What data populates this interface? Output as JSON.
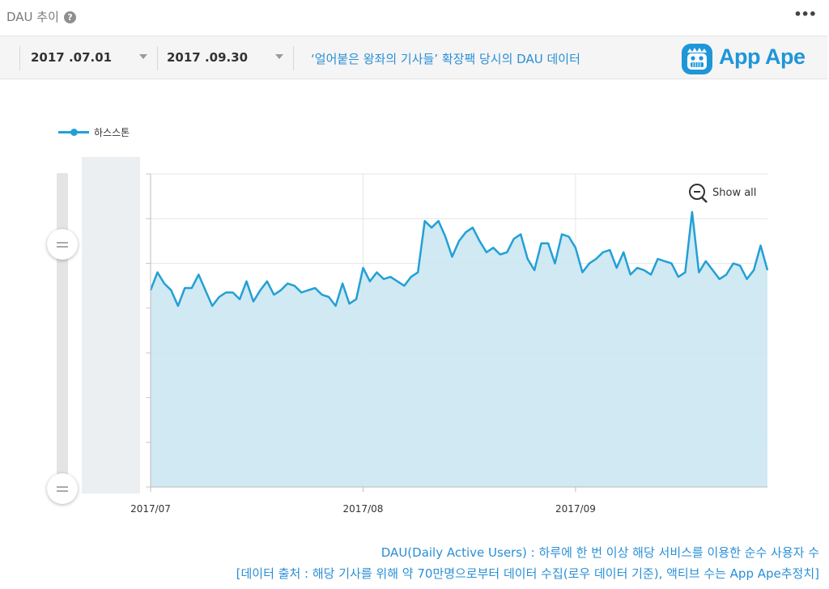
{
  "header": {
    "title": "DAU 추이",
    "help_icon": "question-circle-icon",
    "more_icon": "more-dots-icon",
    "more_label": "•••"
  },
  "filters": {
    "start_date": "2017 .07.01",
    "end_date": "2017 .09.30",
    "headline": "‘얼어붙은 왕좌의 기사들’ 확장팩 당시의 DAU 데이터"
  },
  "brand": {
    "name": "App Ape",
    "color": "#1e96d8"
  },
  "controls": {
    "show_all_label": "Show all"
  },
  "chart_data": {
    "type": "area",
    "series": [
      {
        "name": "하스스톤",
        "color": "#22a0d6",
        "fill": "#cbe7f2",
        "values": [
          4.4,
          4.8,
          4.55,
          4.4,
          4.05,
          4.45,
          4.45,
          4.75,
          4.4,
          4.05,
          4.25,
          4.35,
          4.35,
          4.2,
          4.6,
          4.15,
          4.4,
          4.6,
          4.3,
          4.4,
          4.55,
          4.5,
          4.35,
          4.4,
          4.45,
          4.3,
          4.25,
          4.05,
          4.55,
          4.1,
          4.2,
          4.9,
          4.6,
          4.8,
          4.65,
          4.7,
          4.6,
          4.5,
          4.7,
          4.8,
          5.95,
          5.8,
          5.95,
          5.6,
          5.15,
          5.5,
          5.7,
          5.8,
          5.5,
          5.25,
          5.35,
          5.2,
          5.25,
          5.55,
          5.65,
          5.1,
          4.85,
          5.45,
          5.45,
          5.0,
          5.65,
          5.6,
          5.35,
          4.8,
          5.0,
          5.1,
          5.25,
          5.3,
          4.9,
          5.25,
          4.75,
          4.9,
          4.85,
          4.75,
          5.1,
          5.05,
          5.0,
          4.7,
          4.8,
          6.15,
          4.8,
          5.05,
          4.85,
          4.65,
          4.75,
          5.0,
          4.95,
          4.65,
          4.85,
          5.4,
          4.85
        ]
      }
    ],
    "x_ticks": [
      "2017/07",
      "2017/08",
      "2017/09"
    ],
    "ylim": [
      0,
      7
    ],
    "grid": true,
    "legend": "top-left"
  },
  "footer": {
    "line1": "DAU(Daily Active Users) : 하루에 한 번 이상 해당 서비스를 이용한 순수 사용자 수",
    "line2": "[데이터 출처 : 해당 기사를 위해 약 70만명으로부터 데이터 수집(로우 데이터 기준), 액티브 수는 App Ape추정치]"
  }
}
